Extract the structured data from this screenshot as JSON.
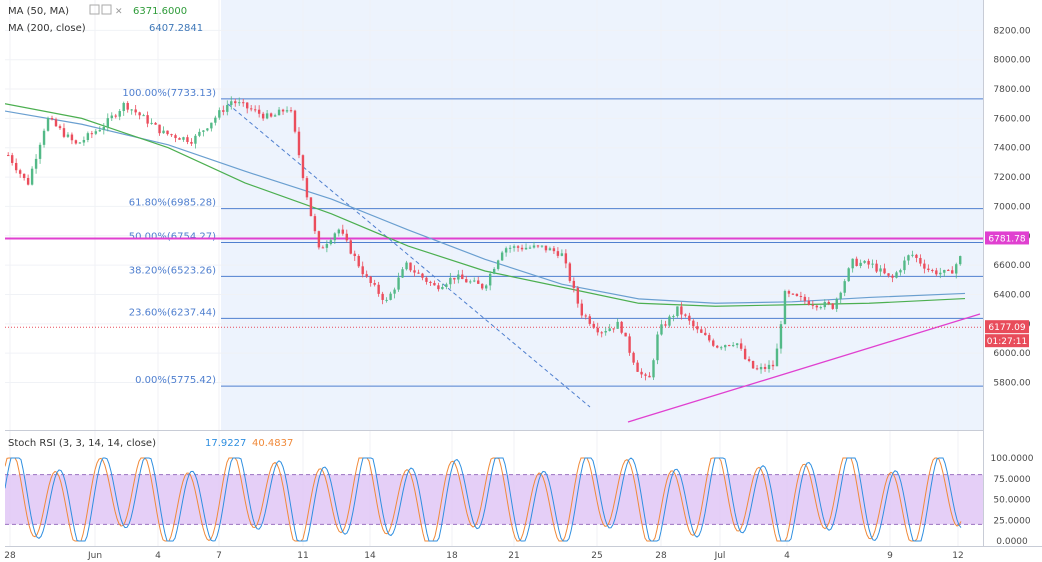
{
  "colors": {
    "background": "#ffffff",
    "highlight": "#edf3fd",
    "up": "#53b987",
    "down": "#eb4d5c",
    "ma50": "#4caf50",
    "ma200": "#6a9fd0",
    "fib": "#4f7fcf",
    "magenta": "#e040d0",
    "rsi_band": "#e0c7f6",
    "rsi_k": "#2f8fe0",
    "rsi_d": "#f08a3a",
    "price_label": "#e84c5a"
  },
  "legend": {
    "ma50_name": "MA (50, MA)",
    "ma50_value": "6371.6000",
    "ma200_name": "MA (200, close)",
    "ma200_value": "6407.2841",
    "rsi_name": "Stoch RSI (3, 3, 14, 14, close)",
    "rsi_k_value": "17.9227",
    "rsi_d_value": "40.4837"
  },
  "price_tag": {
    "last": "6177.09",
    "countdown": "01:27:11",
    "level": "6781.78"
  },
  "chart_data": [
    {
      "type": "candlestick",
      "title": "",
      "y_ticks": [
        5800,
        6000,
        6200,
        6400,
        6600,
        6800,
        7000,
        7200,
        7400,
        7600,
        7800,
        8000,
        8200
      ],
      "y_tick_labels": [
        "5800.00",
        "6000.00",
        "6200.00",
        "6400.00",
        "6600.00",
        "6800.00",
        "7000.00",
        "7200.00",
        "7400.00",
        "7600.00",
        "7800.00",
        "8000.00",
        "8200.00"
      ],
      "ylim": [
        5640,
        8400
      ],
      "x_ticks": [
        "28",
        "Jun",
        "4",
        "7",
        "11",
        "14",
        "18",
        "21",
        "25",
        "28",
        "Jul",
        "4",
        "9",
        "12"
      ],
      "fibonacci": [
        {
          "label": "100.00%(7733.13)",
          "value": 7733.13
        },
        {
          "label": "61.80%(6985.28)",
          "value": 6985.28
        },
        {
          "label": "50.00%(6754.27)",
          "value": 6754.27
        },
        {
          "label": "38.20%(6523.26)",
          "value": 6523.26
        },
        {
          "label": "23.60%(6237.44)",
          "value": 6237.44
        },
        {
          "label": "0.00%(5775.42)",
          "value": 5775.42
        }
      ],
      "horizontal_line": 6781.78,
      "last_price": 6177.09,
      "ma50": [
        [
          0,
          7700
        ],
        [
          0.08,
          7600
        ],
        [
          0.17,
          7400
        ],
        [
          0.25,
          7160
        ],
        [
          0.34,
          6950
        ],
        [
          0.42,
          6730
        ],
        [
          0.5,
          6560
        ],
        [
          0.58,
          6450
        ],
        [
          0.66,
          6340
        ],
        [
          0.74,
          6320
        ],
        [
          0.82,
          6330
        ],
        [
          0.9,
          6340
        ],
        [
          1.0,
          6372
        ]
      ],
      "ma200": [
        [
          0,
          7650
        ],
        [
          0.08,
          7560
        ],
        [
          0.17,
          7420
        ],
        [
          0.25,
          7240
        ],
        [
          0.34,
          7050
        ],
        [
          0.42,
          6840
        ],
        [
          0.5,
          6640
        ],
        [
          0.58,
          6470
        ],
        [
          0.66,
          6370
        ],
        [
          0.74,
          6340
        ],
        [
          0.82,
          6350
        ],
        [
          0.9,
          6380
        ],
        [
          1.0,
          6407
        ]
      ],
      "path": [
        [
          0,
          7350
        ],
        [
          0.02,
          7150
        ],
        [
          0.04,
          7600
        ],
        [
          0.07,
          7420
        ],
        [
          0.1,
          7560
        ],
        [
          0.12,
          7700
        ],
        [
          0.16,
          7500
        ],
        [
          0.19,
          7450
        ],
        [
          0.23,
          7720
        ],
        [
          0.27,
          7600
        ],
        [
          0.29,
          7680
        ],
        [
          0.31,
          7000
        ],
        [
          0.32,
          6700
        ],
        [
          0.34,
          6850
        ],
        [
          0.37,
          6500
        ],
        [
          0.39,
          6350
        ],
        [
          0.41,
          6600
        ],
        [
          0.44,
          6450
        ],
        [
          0.46,
          6520
        ],
        [
          0.49,
          6450
        ],
        [
          0.51,
          6720
        ],
        [
          0.55,
          6720
        ],
        [
          0.57,
          6680
        ],
        [
          0.59,
          6280
        ],
        [
          0.61,
          6150
        ],
        [
          0.63,
          6200
        ],
        [
          0.64,
          6020
        ],
        [
          0.65,
          5870
        ],
        [
          0.66,
          5800
        ],
        [
          0.67,
          6150
        ],
        [
          0.69,
          6300
        ],
        [
          0.71,
          6150
        ],
        [
          0.73,
          6050
        ],
        [
          0.75,
          6080
        ],
        [
          0.76,
          5950
        ],
        [
          0.77,
          5880
        ],
        [
          0.79,
          5920
        ],
        [
          0.8,
          6400
        ],
        [
          0.83,
          6340
        ],
        [
          0.85,
          6320
        ],
        [
          0.87,
          6620
        ],
        [
          0.89,
          6600
        ],
        [
          0.91,
          6500
        ],
        [
          0.93,
          6680
        ],
        [
          0.95,
          6560
        ],
        [
          0.97,
          6540
        ],
        [
          0.99,
          6740
        ],
        [
          1.01,
          6710
        ],
        [
          1.03,
          6600
        ],
        [
          1.04,
          6380
        ],
        [
          1.06,
          6380
        ],
        [
          1.07,
          6180
        ]
      ]
    },
    {
      "type": "line",
      "title": "",
      "y_ticks": [
        0,
        25,
        50,
        75,
        100
      ],
      "y_tick_labels": [
        "0.0000",
        "25.0000",
        "50.0000",
        "75.0000",
        "100.0000"
      ],
      "ylim": [
        -2,
        102
      ],
      "band": [
        20,
        80
      ],
      "series": [
        {
          "name": "",
          "role": "k",
          "last": 17.9227
        },
        {
          "name": "",
          "role": "d",
          "last": 40.4837
        }
      ]
    }
  ]
}
